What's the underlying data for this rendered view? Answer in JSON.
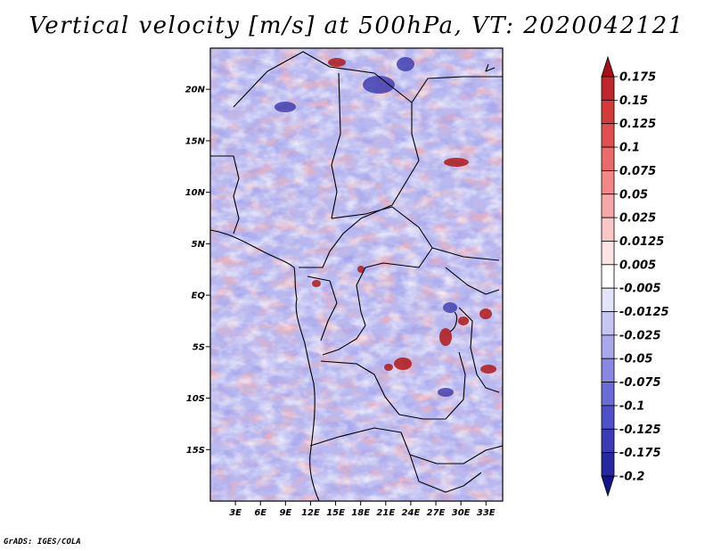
{
  "title": "Vertical velocity [m/s] at 500hPa, VT: 2020042121",
  "credit": "GrADS: IGES/COLA",
  "map": {
    "lon_range": [
      0,
      35
    ],
    "lat_range": [
      -20,
      24
    ],
    "y_ticks": [
      "20N",
      "15N",
      "10N",
      "5N",
      "EQ",
      "5S",
      "10S",
      "15S"
    ],
    "x_ticks": [
      "3E",
      "6E",
      "9E",
      "12E",
      "15E",
      "18E",
      "21E",
      "24E",
      "27E",
      "30E",
      "33E"
    ]
  },
  "colorbar": {
    "levels": [
      "0.175",
      "0.15",
      "0.125",
      "0.1",
      "0.075",
      "0.05",
      "0.025",
      "0.0125",
      "0.005",
      "-0.005",
      "-0.0125",
      "-0.025",
      "-0.05",
      "-0.075",
      "-0.1",
      "-0.125",
      "-0.175",
      "-0.2"
    ],
    "colors": [
      "#a50f15",
      "#c0272d",
      "#d33b3b",
      "#e05050",
      "#ea6b6b",
      "#f08888",
      "#f5a8a8",
      "#fac6c6",
      "#fde3e3",
      "#ffffff",
      "#e3e3fa",
      "#c6c6f3",
      "#a8a8eb",
      "#8888e2",
      "#6b6bd7",
      "#5050c8",
      "#3b3bb6",
      "#2727a0",
      "#14148a"
    ]
  }
}
